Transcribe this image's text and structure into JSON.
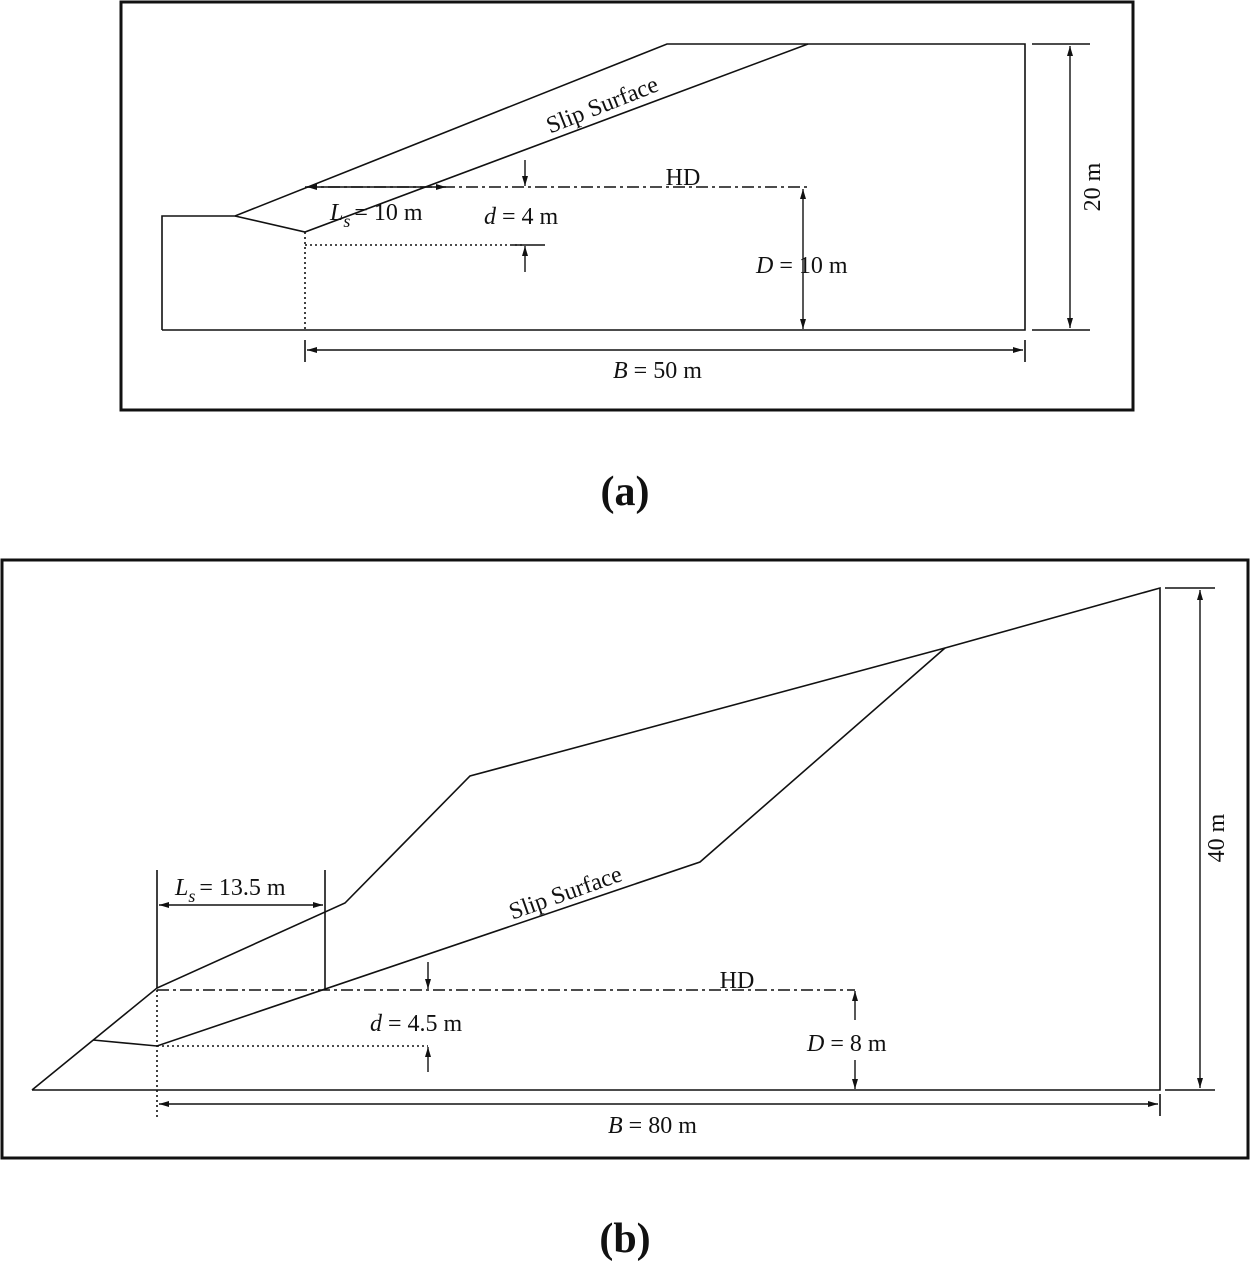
{
  "panels": [
    {
      "caption": "(a)",
      "slip_surface": "Slip Surface",
      "hd": "HD",
      "ls": {
        "symbol": "L",
        "subscript": "s",
        "text": "= 10 m"
      },
      "d": {
        "symbol": "d",
        "text": "= 4 m"
      },
      "D": {
        "symbol": "D",
        "text": "= 10 m"
      },
      "height": "20 m",
      "B": {
        "symbol": "B",
        "text": "= 50 m"
      }
    },
    {
      "caption": "(b)",
      "slip_surface": "Slip Surface",
      "hd": "HD",
      "ls": {
        "symbol": "L",
        "subscript": "s",
        "text": "= 13.5 m"
      },
      "d": {
        "symbol": "d",
        "text": "= 4.5 m"
      },
      "D": {
        "symbol": "D",
        "text": "= 8 m"
      },
      "height": "40 m",
      "B": {
        "symbol": "B",
        "text": "= 80 m"
      }
    }
  ]
}
